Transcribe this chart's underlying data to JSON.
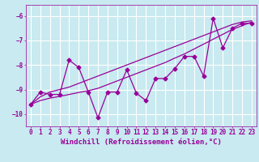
{
  "xlabel": "Windchill (Refroidissement éolien,°C)",
  "background_color": "#c8eaf0",
  "grid_color": "#ffffff",
  "line_color": "#990099",
  "xlim": [
    -0.5,
    23.5
  ],
  "ylim": [
    -10.5,
    -5.55
  ],
  "yticks": [
    -10,
    -9,
    -8,
    -7,
    -6
  ],
  "xticks": [
    0,
    1,
    2,
    3,
    4,
    5,
    6,
    7,
    8,
    9,
    10,
    11,
    12,
    13,
    14,
    15,
    16,
    17,
    18,
    19,
    20,
    21,
    22,
    23
  ],
  "x": [
    0,
    1,
    2,
    3,
    4,
    5,
    6,
    7,
    8,
    9,
    10,
    11,
    12,
    13,
    14,
    15,
    16,
    17,
    18,
    19,
    20,
    21,
    22,
    23
  ],
  "y_zigzag": [
    -9.6,
    -9.1,
    -9.2,
    -9.2,
    -7.8,
    -8.1,
    -9.1,
    -10.15,
    -9.1,
    -9.1,
    -8.2,
    -9.15,
    -9.45,
    -8.55,
    -8.55,
    -8.15,
    -7.65,
    -7.65,
    -8.45,
    -6.1,
    -7.3,
    -6.5,
    -6.3,
    -6.3
  ],
  "y_smooth1": [
    -9.6,
    -9.3,
    -9.1,
    -9.0,
    -8.9,
    -8.75,
    -8.6,
    -8.45,
    -8.3,
    -8.15,
    -8.0,
    -7.85,
    -7.7,
    -7.55,
    -7.4,
    -7.25,
    -7.1,
    -6.95,
    -6.8,
    -6.65,
    -6.5,
    -6.35,
    -6.25,
    -6.2
  ],
  "y_smooth2": [
    -9.6,
    -9.45,
    -9.35,
    -9.28,
    -9.2,
    -9.12,
    -9.05,
    -8.95,
    -8.8,
    -8.65,
    -8.5,
    -8.35,
    -8.2,
    -8.05,
    -7.9,
    -7.72,
    -7.55,
    -7.35,
    -7.15,
    -6.95,
    -6.75,
    -6.55,
    -6.4,
    -6.25
  ],
  "marker": "D",
  "marker_size": 2.5,
  "linewidth": 0.9,
  "tick_fontsize": 5.5,
  "label_fontsize": 6.5
}
